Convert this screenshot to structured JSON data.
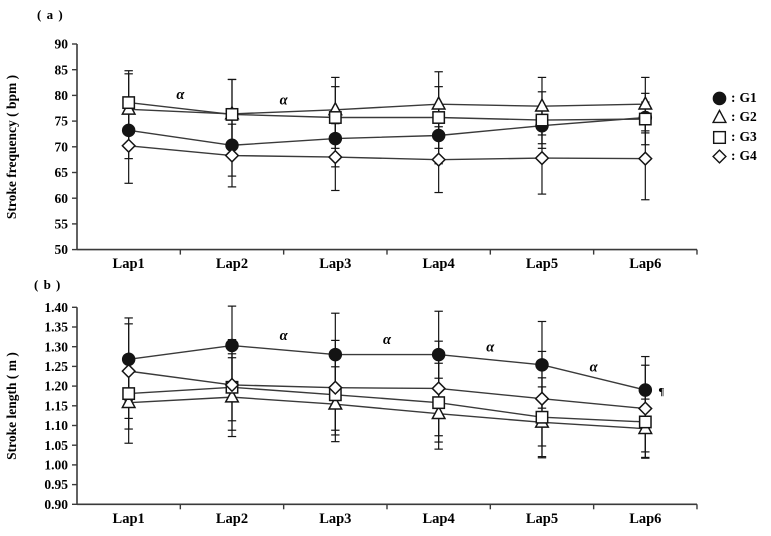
{
  "legend": {
    "separator": ":",
    "items": [
      {
        "label": "G1",
        "marker": "circle-filled"
      },
      {
        "label": "G2",
        "marker": "triangle-open"
      },
      {
        "label": "G3",
        "marker": "square-open"
      },
      {
        "label": "G4",
        "marker": "diamond-open"
      }
    ]
  },
  "colors": {
    "line": "#3a3a3a",
    "axis": "#3a3a3a",
    "marker_stroke": "#141414",
    "marker_fill_filled": "#141414",
    "marker_fill_open": "#ffffff",
    "error_bar": "#141414",
    "text": "#000000",
    "background": "#ffffff"
  },
  "chart_data": [
    {
      "type": "line",
      "panel": "a",
      "title": "( a )",
      "ylabel": "Stroke frequency ( bpm )",
      "xlabel": "",
      "categories": [
        "Lap1",
        "Lap2",
        "Lap3",
        "Lap4",
        "Lap5",
        "Lap6"
      ],
      "ylim": [
        50,
        90
      ],
      "yticks": [
        50,
        55,
        60,
        65,
        70,
        75,
        80,
        85,
        90
      ],
      "ytick_decimals": 0,
      "grid": false,
      "legend_position": "right",
      "error_bars": true,
      "series": [
        {
          "name": "G1",
          "marker": "circle-filled",
          "values": [
            73.2,
            70.3,
            71.6,
            72.2,
            74.1,
            75.7
          ],
          "err": [
            5.5,
            6.0,
            5.5,
            5.5,
            3.5,
            3.0
          ]
        },
        {
          "name": "G2",
          "marker": "triangle-open",
          "values": [
            77.3,
            76.4,
            77.2,
            78.3,
            77.9,
            78.3
          ],
          "err": [
            6.9,
            6.7,
            6.3,
            6.3,
            5.6,
            5.2
          ]
        },
        {
          "name": "G3",
          "marker": "square-open",
          "values": [
            78.6,
            76.3,
            75.7,
            75.7,
            75.2,
            75.4
          ],
          "err": [
            6.2,
            6.8,
            6.0,
            6.0,
            5.5,
            5.0
          ]
        },
        {
          "name": "G4",
          "marker": "diamond-open",
          "values": [
            70.2,
            68.3,
            68.0,
            67.5,
            67.8,
            67.7
          ],
          "err": [
            7.3,
            6.1,
            6.5,
            6.4,
            7.0,
            8.0
          ]
        }
      ],
      "annotations": [
        {
          "type": "between",
          "text": "α",
          "laps": [
            1,
            2
          ],
          "y": 80.3
        },
        {
          "type": "between",
          "text": "α",
          "laps": [
            2,
            3
          ],
          "y": 79.2
        }
      ]
    },
    {
      "type": "line",
      "panel": "b",
      "title": "( b )",
      "ylabel": "Stroke length ( m )",
      "xlabel": "",
      "categories": [
        "Lap1",
        "Lap2",
        "Lap3",
        "Lap4",
        "Lap5",
        "Lap6"
      ],
      "ylim": [
        0.9,
        1.4
      ],
      "yticks": [
        0.9,
        0.95,
        1.0,
        1.05,
        1.1,
        1.15,
        1.2,
        1.25,
        1.3,
        1.35,
        1.4
      ],
      "ytick_decimals": 2,
      "grid": false,
      "legend_position": "none",
      "error_bars": true,
      "series": [
        {
          "name": "G1",
          "marker": "circle-filled",
          "values": [
            1.268,
            1.303,
            1.28,
            1.28,
            1.254,
            1.19
          ],
          "err": [
            0.105,
            0.1,
            0.105,
            0.11,
            0.11,
            0.085
          ]
        },
        {
          "name": "G2",
          "marker": "triangle-open",
          "values": [
            1.158,
            1.172,
            1.154,
            1.13,
            1.108,
            1.092
          ],
          "err": [
            0.103,
            0.1,
            0.095,
            0.09,
            0.09,
            0.075
          ]
        },
        {
          "name": "G3",
          "marker": "square-open",
          "values": [
            1.181,
            1.197,
            1.178,
            1.158,
            1.121,
            1.109
          ],
          "err": [
            0.09,
            0.085,
            0.09,
            0.1,
            0.1,
            0.09
          ]
        },
        {
          "name": "G4",
          "marker": "diamond-open",
          "values": [
            1.238,
            1.203,
            1.196,
            1.194,
            1.168,
            1.143
          ],
          "err": [
            0.12,
            0.115,
            0.12,
            0.12,
            0.12,
            0.11
          ]
        }
      ],
      "annotations": [
        {
          "type": "between",
          "text": "α",
          "laps": [
            2,
            3
          ],
          "y": 1.33
        },
        {
          "type": "between",
          "text": "α",
          "laps": [
            3,
            4
          ],
          "y": 1.32
        },
        {
          "type": "between",
          "text": "α",
          "laps": [
            4,
            5
          ],
          "y": 1.3
        },
        {
          "type": "between",
          "text": "α",
          "laps": [
            5,
            6
          ],
          "y": 1.25
        },
        {
          "type": "point",
          "text": "¶",
          "series": "G1",
          "lap": 6,
          "dx": 10,
          "dy": 1
        }
      ]
    }
  ]
}
